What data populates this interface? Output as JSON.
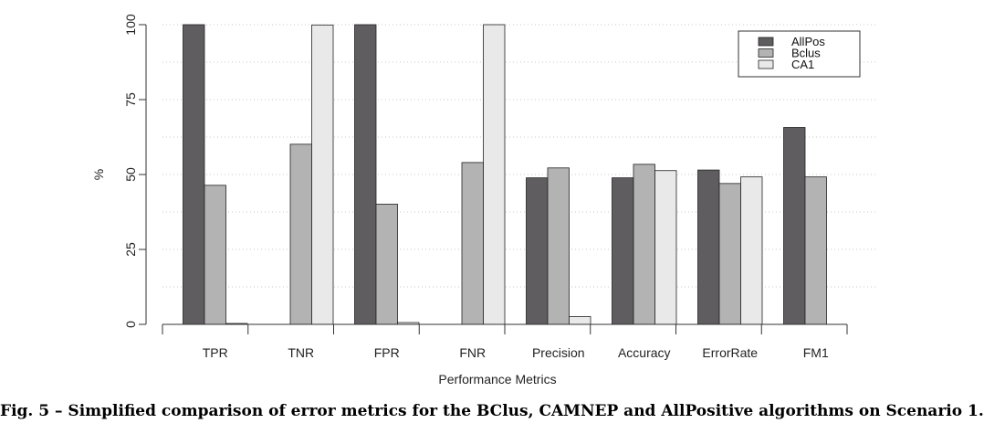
{
  "chart_data": {
    "type": "bar",
    "title": "",
    "xlabel": "Performance Metrics",
    "ylabel": "%",
    "ylim": [
      0,
      100
    ],
    "yticks": [
      0,
      25,
      50,
      75,
      100
    ],
    "grid": true,
    "legend_position": "top-right",
    "categories": [
      "TPR",
      "TNR",
      "FPR",
      "FNR",
      "Precision",
      "Accuracy",
      "ErrorRate",
      "FM1"
    ],
    "series": [
      {
        "name": "AllPos",
        "color": "#5f5d5f",
        "values": [
          100,
          0,
          100,
          0,
          48.9,
          48.9,
          51.5,
          65.7
        ]
      },
      {
        "name": "Bclus",
        "color": "#b3b3b3",
        "values": [
          46.4,
          60.1,
          40.1,
          54.0,
          52.2,
          53.4,
          47.0,
          49.2
        ]
      },
      {
        "name": "CA1",
        "color": "#e9e9e9",
        "values": [
          0.3,
          99.9,
          0.6,
          100,
          2.6,
          51.3,
          49.2,
          0
        ]
      }
    ]
  },
  "caption": "Fig. 5 – Simplified comparison of error metrics for the BClus, CAMNEP and AllPositive algorithms on Scenario 1."
}
